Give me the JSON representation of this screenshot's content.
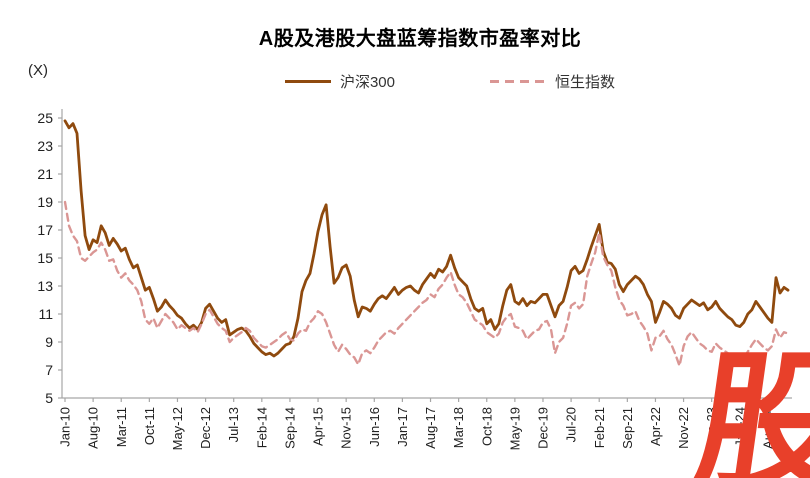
{
  "header": {
    "title": "A股及港股大盘蓝筹指数市盈率对比"
  },
  "unit_label": "(X)",
  "legend": {
    "items": [
      {
        "label": "沪深300",
        "color": "#8F4A0E",
        "style": "solid"
      },
      {
        "label": "恒生指数",
        "color": "#DA9694",
        "style": "dashed"
      }
    ]
  },
  "watermark": {
    "text": "股",
    "color": "#E8402A"
  },
  "chart_data": {
    "type": "line",
    "title": "A股及港股大盘蓝筹指数市盈率对比",
    "unit": "(X)",
    "xlabel": "",
    "ylabel": "(X)",
    "ylim": [
      5,
      25
    ],
    "y_ticks": [
      5,
      7,
      9,
      11,
      13,
      15,
      17,
      19,
      21,
      23,
      25
    ],
    "grid": false,
    "legend_position": "top-center",
    "x_frequency": "monthly",
    "x_start": "Jan-10",
    "x_end": "Jan-25",
    "x_tick_interval_months": 7,
    "x_tick_labels": [
      "Jan-10",
      "Aug-10",
      "Mar-11",
      "Oct-11",
      "May-12",
      "Dec-12",
      "Jul-13",
      "Feb-14",
      "Sep-14",
      "Apr-15",
      "Nov-15",
      "Jun-16",
      "Jan-17",
      "Aug-17",
      "Mar-18",
      "Oct-18",
      "May-19",
      "Dec-19",
      "Jul-20",
      "Feb-21",
      "Sep-21",
      "Apr-22",
      "Nov-22",
      "Jun-23",
      "Jan-24",
      "Aug-24"
    ],
    "series": [
      {
        "name": "沪深300",
        "color": "#8F4A0E",
        "line_style": "solid",
        "values": [
          24.8,
          24.3,
          24.6,
          23.9,
          19.8,
          16.6,
          15.6,
          16.3,
          16.1,
          17.3,
          16.8,
          15.9,
          16.4,
          16.0,
          15.5,
          15.7,
          14.9,
          14.3,
          14.5,
          13.6,
          12.7,
          12.9,
          12.1,
          11.2,
          11.5,
          12.0,
          11.6,
          11.3,
          10.9,
          10.7,
          10.3,
          10.0,
          10.2,
          9.9,
          10.4,
          11.4,
          11.7,
          11.2,
          10.7,
          10.4,
          10.6,
          9.5,
          9.7,
          9.9,
          10.0,
          9.8,
          9.4,
          8.9,
          8.6,
          8.3,
          8.1,
          8.2,
          8.0,
          8.2,
          8.5,
          8.8,
          8.9,
          9.4,
          10.7,
          12.6,
          13.4,
          13.9,
          15.3,
          16.9,
          18.1,
          18.8,
          15.8,
          13.2,
          13.6,
          14.3,
          14.5,
          13.7,
          12.0,
          10.8,
          11.5,
          11.4,
          11.2,
          11.7,
          12.1,
          12.3,
          12.1,
          12.5,
          12.9,
          12.4,
          12.7,
          12.9,
          13.0,
          12.7,
          12.5,
          13.1,
          13.5,
          13.9,
          13.6,
          14.2,
          14.0,
          14.4,
          15.2,
          14.3,
          13.6,
          13.3,
          13.0,
          12.1,
          11.4,
          11.2,
          11.4,
          10.3,
          10.6,
          9.9,
          10.3,
          11.6,
          12.7,
          13.1,
          11.9,
          11.7,
          12.1,
          11.6,
          11.9,
          11.8,
          12.1,
          12.4,
          12.4,
          11.6,
          10.8,
          11.6,
          11.9,
          12.9,
          14.1,
          14.4,
          13.9,
          14.1,
          14.9,
          15.8,
          16.6,
          17.4,
          15.5,
          14.7,
          14.6,
          14.2,
          13.1,
          12.6,
          13.1,
          13.4,
          13.7,
          13.5,
          13.1,
          12.4,
          11.9,
          10.4,
          11.1,
          11.9,
          11.7,
          11.4,
          10.9,
          10.7,
          11.4,
          11.7,
          12.0,
          11.8,
          11.6,
          11.8,
          11.3,
          11.5,
          11.9,
          11.4,
          11.1,
          10.8,
          10.6,
          10.2,
          10.1,
          10.4,
          11.0,
          11.3,
          11.9,
          11.5,
          11.1,
          10.7,
          10.4,
          13.6,
          12.5,
          12.9,
          12.7
        ]
      },
      {
        "name": "恒生指数",
        "color": "#DA9694",
        "line_style": "dashed",
        "values": [
          19.0,
          17.3,
          16.6,
          16.2,
          15.0,
          14.8,
          15.1,
          15.4,
          15.6,
          16.1,
          15.6,
          14.8,
          14.9,
          14.1,
          13.6,
          13.9,
          13.4,
          13.1,
          12.7,
          11.9,
          10.6,
          10.3,
          10.7,
          10.0,
          10.5,
          11.0,
          10.7,
          10.4,
          9.9,
          10.2,
          10.0,
          9.8,
          10.0,
          9.7,
          10.3,
          11.0,
          11.3,
          10.8,
          10.3,
          10.0,
          9.8,
          9.0,
          9.3,
          9.5,
          9.7,
          10.0,
          9.8,
          9.3,
          9.0,
          8.7,
          8.6,
          8.8,
          9.0,
          9.2,
          9.5,
          9.7,
          9.2,
          9.1,
          9.6,
          9.9,
          9.8,
          10.4,
          10.7,
          11.2,
          11.0,
          10.4,
          9.6,
          8.8,
          8.3,
          8.8,
          8.5,
          8.1,
          7.9,
          7.4,
          8.2,
          8.4,
          8.2,
          8.6,
          9.1,
          9.4,
          9.7,
          9.8,
          9.6,
          10.0,
          10.3,
          10.6,
          10.9,
          11.2,
          11.5,
          11.8,
          12.0,
          12.4,
          12.2,
          12.8,
          13.1,
          13.6,
          14.0,
          13.1,
          12.4,
          12.2,
          11.8,
          11.2,
          10.6,
          10.4,
          10.2,
          9.7,
          9.5,
          9.3,
          9.6,
          10.4,
          10.8,
          11.0,
          10.1,
          10.0,
          9.8,
          9.2,
          9.5,
          9.8,
          9.9,
          10.4,
          10.5,
          9.9,
          8.2,
          9.0,
          9.3,
          10.3,
          11.6,
          11.8,
          11.4,
          11.7,
          13.7,
          14.6,
          15.4,
          16.8,
          15.1,
          14.5,
          14.1,
          12.9,
          12.0,
          11.6,
          10.9,
          11.0,
          11.2,
          10.5,
          10.1,
          9.6,
          8.4,
          9.3,
          9.4,
          9.8,
          9.2,
          8.8,
          8.1,
          7.3,
          8.7,
          9.4,
          9.7,
          9.3,
          8.9,
          8.7,
          8.4,
          8.3,
          8.9,
          8.6,
          8.4,
          8.2,
          8.0,
          7.8,
          7.6,
          7.9,
          8.3,
          8.8,
          9.2,
          8.9,
          8.6,
          8.4,
          8.7,
          9.9,
          9.3,
          9.7,
          9.6
        ]
      }
    ]
  }
}
